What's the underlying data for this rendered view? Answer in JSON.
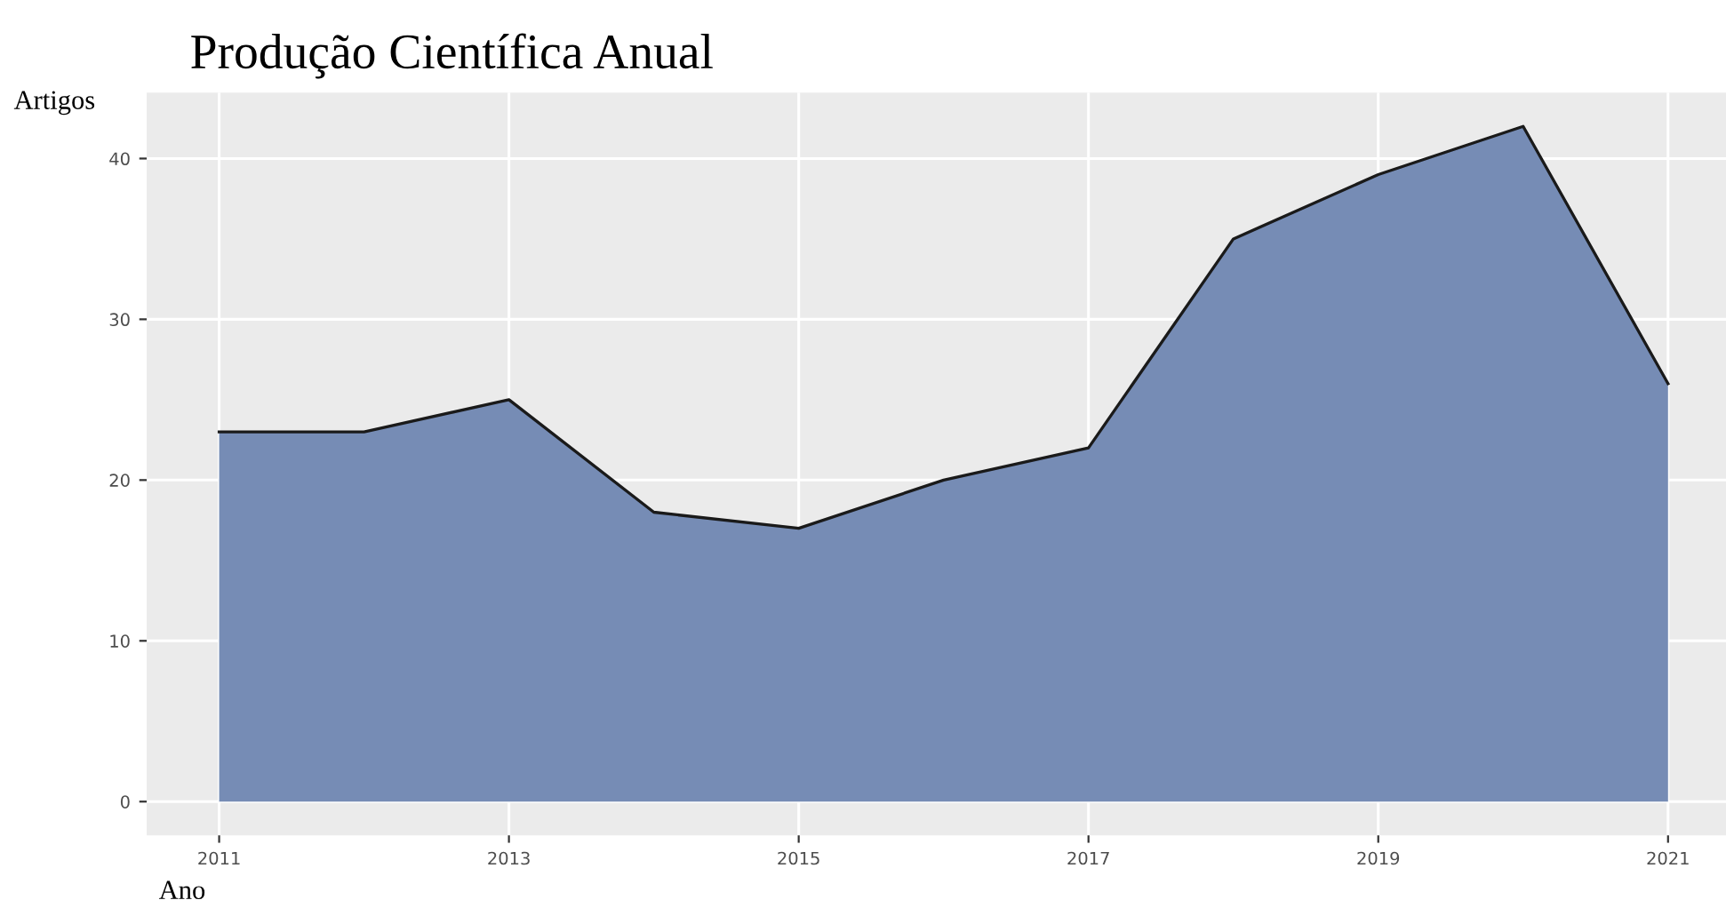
{
  "chart_data": {
    "type": "area",
    "title": "Produção Científica Anual",
    "xlabel": "Ano",
    "ylabel": "Artigos",
    "x": [
      2011,
      2012,
      2013,
      2014,
      2015,
      2016,
      2017,
      2018,
      2019,
      2020,
      2021
    ],
    "series": [
      {
        "color": "#768cb5",
        "values": [
          23,
          23,
          25,
          18,
          17,
          20,
          22,
          35,
          39,
          42,
          26
        ]
      }
    ],
    "xlim": [
      2010.5,
      2021.4
    ],
    "xticks": [
      2011,
      2013,
      2015,
      2017,
      2019,
      2021
    ],
    "ylim": [
      -2.1,
      44.1
    ],
    "yticks": [
      0,
      10,
      20,
      30,
      40
    ],
    "grid": true
  }
}
